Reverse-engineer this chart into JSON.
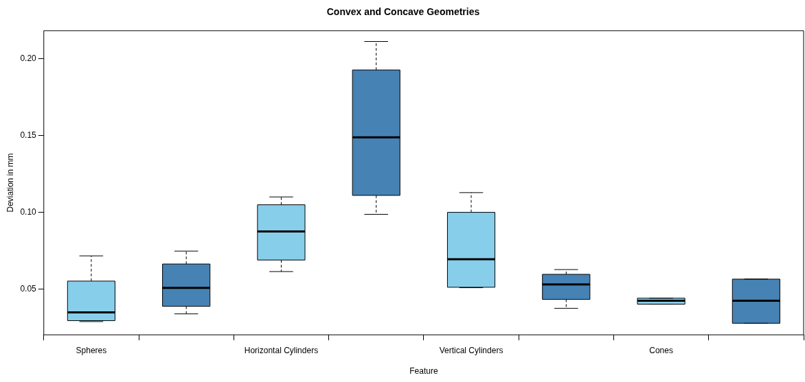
{
  "chart_data": {
    "type": "box",
    "title": "Convex and Concave Geometries",
    "xlabel": "Feature",
    "ylabel": "Deviation in mm",
    "categories": [
      "Spheres",
      null,
      "Horizontal Cylinders",
      null,
      "Vertical Cylinders",
      null,
      "Cones",
      null
    ],
    "colors": [
      "#87ceeb",
      "#4682b4",
      "#87ceeb",
      "#4682b4",
      "#87ceeb",
      "#4682b4",
      "#87ceeb",
      "#4682b4"
    ],
    "boxes": [
      {
        "low": 0.029,
        "q1": 0.0296,
        "median": 0.035,
        "q3": 0.0553,
        "high": 0.0717
      },
      {
        "low": 0.034,
        "q1": 0.0389,
        "median": 0.0509,
        "q3": 0.0664,
        "high": 0.0748
      },
      {
        "low": 0.0615,
        "q1": 0.069,
        "median": 0.0876,
        "q3": 0.1049,
        "high": 0.11
      },
      {
        "low": 0.0987,
        "q1": 0.111,
        "median": 0.1487,
        "q3": 0.1925,
        "high": 0.211
      },
      {
        "low": 0.051,
        "q1": 0.0513,
        "median": 0.0695,
        "q3": 0.1,
        "high": 0.1128
      },
      {
        "low": 0.0376,
        "q1": 0.0434,
        "median": 0.0531,
        "q3": 0.0597,
        "high": 0.0628
      },
      {
        "low": 0.0403,
        "q1": 0.0403,
        "median": 0.0425,
        "q3": 0.0442,
        "high": 0.0442
      },
      {
        "low": 0.0279,
        "q1": 0.0279,
        "median": 0.0425,
        "q3": 0.0566,
        "high": 0.0566
      }
    ],
    "ylim": [
      0.0204,
      0.218
    ],
    "yticks": [
      {
        "value": 0.05,
        "label": "0.05"
      },
      {
        "value": 0.1,
        "label": "0.10"
      },
      {
        "value": 0.15,
        "label": "0.15"
      },
      {
        "value": 0.2,
        "label": "0.20"
      }
    ],
    "line_style": "dashed",
    "grid": false,
    "legend": false
  }
}
